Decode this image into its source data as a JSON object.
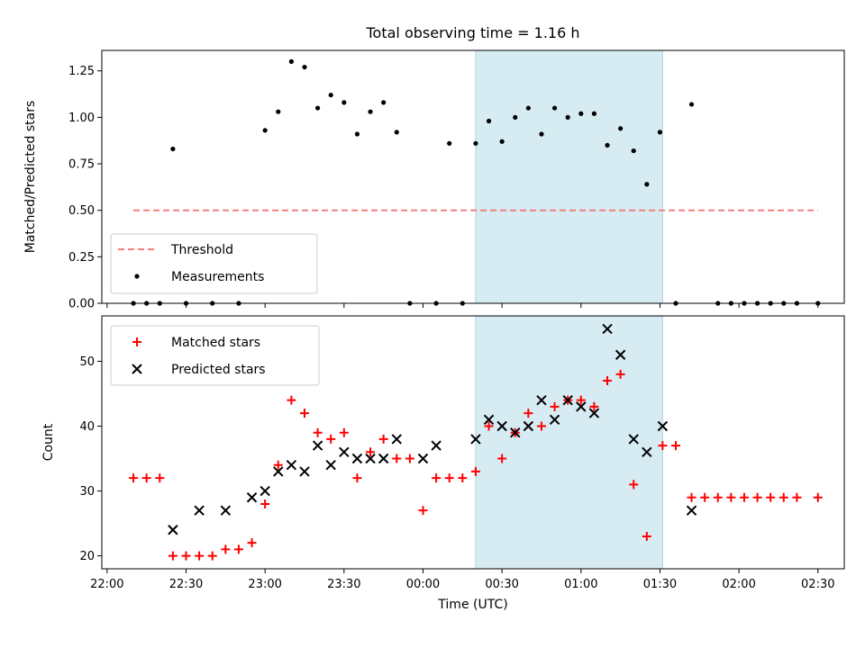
{
  "chart_data": [
    {
      "type": "scatter",
      "title": "Total observing time = 1.16 h",
      "xlabel": "",
      "ylabel": "Matched/Predicted stars",
      "ylim": [
        0,
        1.36
      ],
      "yticks": [
        "0.00",
        "0.25",
        "0.50",
        "0.75",
        "1.00",
        "1.25"
      ],
      "shaded_region": {
        "x0": "00:20",
        "x1": "01:31",
        "color": "#add8e6"
      },
      "threshold": {
        "name": "Threshold",
        "y": 0.5,
        "x0": "22:10",
        "x1": "02:30",
        "color": "#f08080"
      },
      "series": [
        {
          "name": "Measurements",
          "color": "#000000",
          "marker": "dot",
          "x": [
            "22:10",
            "22:15",
            "22:20",
            "22:25",
            "22:30",
            "22:40",
            "22:50",
            "23:00",
            "23:05",
            "23:10",
            "23:15",
            "23:20",
            "23:25",
            "23:30",
            "23:35",
            "23:40",
            "23:45",
            "23:50",
            "23:55",
            "00:05",
            "00:10",
            "00:15",
            "00:20",
            "00:25",
            "00:30",
            "00:35",
            "00:40",
            "00:45",
            "00:50",
            "00:55",
            "01:00",
            "01:05",
            "01:10",
            "01:15",
            "01:20",
            "01:25",
            "01:30",
            "01:36",
            "01:42",
            "01:52",
            "01:57",
            "02:02",
            "02:07",
            "02:12",
            "02:17",
            "02:22",
            "02:30"
          ],
          "y": [
            0.0,
            0.0,
            0.0,
            0.83,
            0.0,
            0.0,
            0.0,
            0.93,
            1.03,
            1.3,
            1.27,
            1.05,
            1.12,
            1.08,
            0.91,
            1.03,
            1.08,
            0.92,
            0.0,
            0.0,
            0.86,
            0.0,
            0.86,
            0.98,
            0.87,
            1.0,
            1.05,
            0.91,
            1.05,
            1.0,
            1.02,
            1.02,
            0.85,
            0.94,
            0.82,
            0.64,
            0.92,
            0.0,
            1.07,
            0.0,
            0.0,
            0.0,
            0.0,
            0.0,
            0.0,
            0.0,
            0.0
          ]
        }
      ],
      "legend": {
        "position": "lower-left",
        "entries": [
          "Threshold",
          "Measurements"
        ]
      }
    },
    {
      "type": "scatter",
      "title": "",
      "xlabel": "Time (UTC)",
      "ylabel": "Count",
      "ylim": [
        18,
        57
      ],
      "yticks": [
        "20",
        "30",
        "40",
        "50"
      ],
      "xticks": [
        "22:00",
        "22:30",
        "23:00",
        "23:30",
        "00:00",
        "00:30",
        "01:00",
        "01:30",
        "02:00",
        "02:30"
      ],
      "shaded_region": {
        "x0": "00:20",
        "x1": "01:31",
        "color": "#add8e6"
      },
      "series": [
        {
          "name": "Matched stars",
          "color": "#ff0000",
          "marker": "plus",
          "x": [
            "22:10",
            "22:15",
            "22:20",
            "22:25",
            "22:30",
            "22:35",
            "22:40",
            "22:45",
            "22:50",
            "22:55",
            "23:00",
            "23:05",
            "23:10",
            "23:15",
            "23:20",
            "23:25",
            "23:30",
            "23:35",
            "23:40",
            "23:45",
            "23:50",
            "23:55",
            "00:00",
            "00:05",
            "00:10",
            "00:15",
            "00:20",
            "00:25",
            "00:30",
            "00:35",
            "00:40",
            "00:45",
            "00:50",
            "00:55",
            "01:00",
            "01:05",
            "01:10",
            "01:15",
            "01:20",
            "01:25",
            "01:31",
            "01:36",
            "01:42",
            "01:47",
            "01:52",
            "01:57",
            "02:02",
            "02:07",
            "02:12",
            "02:17",
            "02:22",
            "02:30"
          ],
          "y": [
            32,
            32,
            32,
            20,
            20,
            20,
            20,
            21,
            21,
            22,
            28,
            34,
            44,
            42,
            39,
            38,
            39,
            32,
            36,
            38,
            35,
            35,
            27,
            32,
            32,
            32,
            33,
            40,
            35,
            39,
            42,
            40,
            43,
            44,
            44,
            43,
            47,
            48,
            31,
            23,
            37,
            37,
            29,
            29,
            29,
            29,
            29,
            29,
            29,
            29,
            29,
            29
          ]
        },
        {
          "name": "Predicted stars",
          "color": "#000000",
          "marker": "x",
          "x": [
            "22:25",
            "22:35",
            "22:45",
            "22:55",
            "23:00",
            "23:05",
            "23:10",
            "23:15",
            "23:20",
            "23:25",
            "23:30",
            "23:35",
            "23:40",
            "23:45",
            "23:50",
            "00:00",
            "00:05",
            "00:20",
            "00:25",
            "00:30",
            "00:35",
            "00:40",
            "00:45",
            "00:50",
            "00:55",
            "01:00",
            "01:05",
            "01:10",
            "01:15",
            "01:20",
            "01:25",
            "01:31",
            "01:42"
          ],
          "y": [
            24,
            27,
            27,
            29,
            30,
            33,
            34,
            33,
            37,
            34,
            36,
            35,
            35,
            35,
            38,
            35,
            37,
            38,
            41,
            40,
            39,
            40,
            44,
            41,
            44,
            43,
            42,
            55,
            51,
            38,
            36,
            40,
            27
          ]
        }
      ],
      "legend": {
        "position": "upper-left",
        "entries": [
          "Matched stars",
          "Predicted stars"
        ]
      }
    }
  ]
}
